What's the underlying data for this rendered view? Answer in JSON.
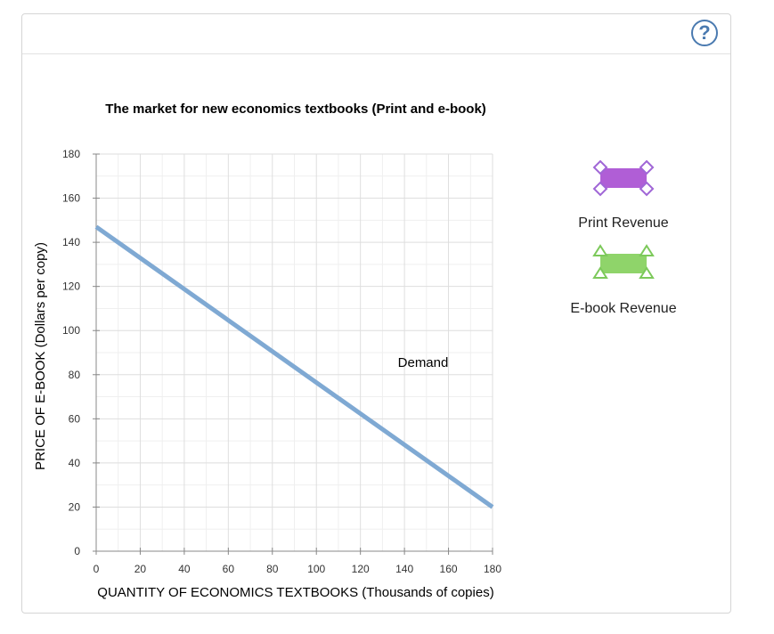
{
  "help": {
    "label": "?"
  },
  "chart_data": {
    "type": "line",
    "title": "The market for new economics textbooks (Print and e-book)",
    "xlabel": "QUANTITY OF ECONOMICS TEXTBOOKS (Thousands of copies)",
    "ylabel": "PRICE OF E-BOOK (Dollars per copy)",
    "xlim": [
      0,
      180
    ],
    "ylim": [
      0,
      180
    ],
    "x_ticks": [
      0,
      20,
      40,
      60,
      80,
      100,
      120,
      140,
      160,
      180
    ],
    "y_ticks": [
      0,
      20,
      40,
      60,
      80,
      100,
      120,
      140,
      160,
      180
    ],
    "grid": true,
    "series": [
      {
        "name": "Demand",
        "x": [
          0,
          180
        ],
        "y": [
          147,
          20
        ],
        "color": "#7fa9d3"
      }
    ],
    "annotations": [
      {
        "text": "Demand",
        "x": 148,
        "y": 85
      }
    ]
  },
  "legend_tools": [
    {
      "label": "Print Revenue",
      "color": "#b05ed6",
      "outline": "#a066d6",
      "icon": "diamond-handles-icon"
    },
    {
      "label": "E-book Revenue",
      "color": "#8fd46a",
      "outline": "#7cc95a",
      "icon": "triangle-handles-icon"
    }
  ]
}
